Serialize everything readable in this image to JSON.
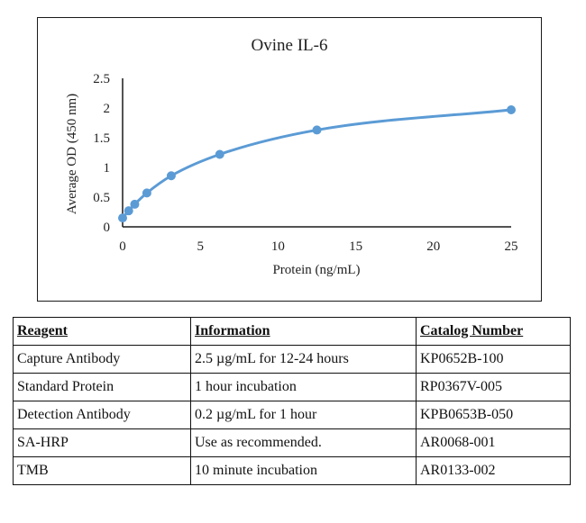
{
  "chart_data": {
    "type": "line",
    "title": "Ovine IL-6",
    "xlabel": "Protein (ng/mL)",
    "ylabel": "Average OD (450 nm)",
    "xlim": [
      0,
      25
    ],
    "ylim": [
      0,
      2.5
    ],
    "x_ticks": [
      "0",
      "5",
      "10",
      "15",
      "20",
      "25"
    ],
    "y_ticks": [
      "0",
      "0.5",
      "1",
      "1.5",
      "2",
      "2.5"
    ],
    "grid": false,
    "legend": "none",
    "series": [
      {
        "x": [
          0,
          0.39,
          0.78,
          1.56,
          3.13,
          6.25,
          12.5,
          25
        ],
        "values": [
          0.15,
          0.27,
          0.38,
          0.57,
          0.86,
          1.22,
          1.63,
          1.97
        ],
        "smooth": true,
        "markers": true,
        "color": "#5b9bd5"
      }
    ]
  },
  "table": {
    "headers": [
      "Reagent",
      "Information",
      "Catalog Number"
    ],
    "rows": [
      [
        "Capture Antibody",
        "2.5 µg/mL for 12-24 hours",
        "KP0652B-100"
      ],
      [
        "Standard Protein",
        "1 hour incubation",
        "RP0367V-005"
      ],
      [
        "Detection Antibody",
        "0.2 µg/mL for 1 hour",
        "KPB0653B-050"
      ],
      [
        "SA-HRP",
        "Use as recommended.",
        "AR0068-001"
      ],
      [
        "TMB",
        "10 minute incubation",
        "AR0133-002"
      ]
    ]
  }
}
